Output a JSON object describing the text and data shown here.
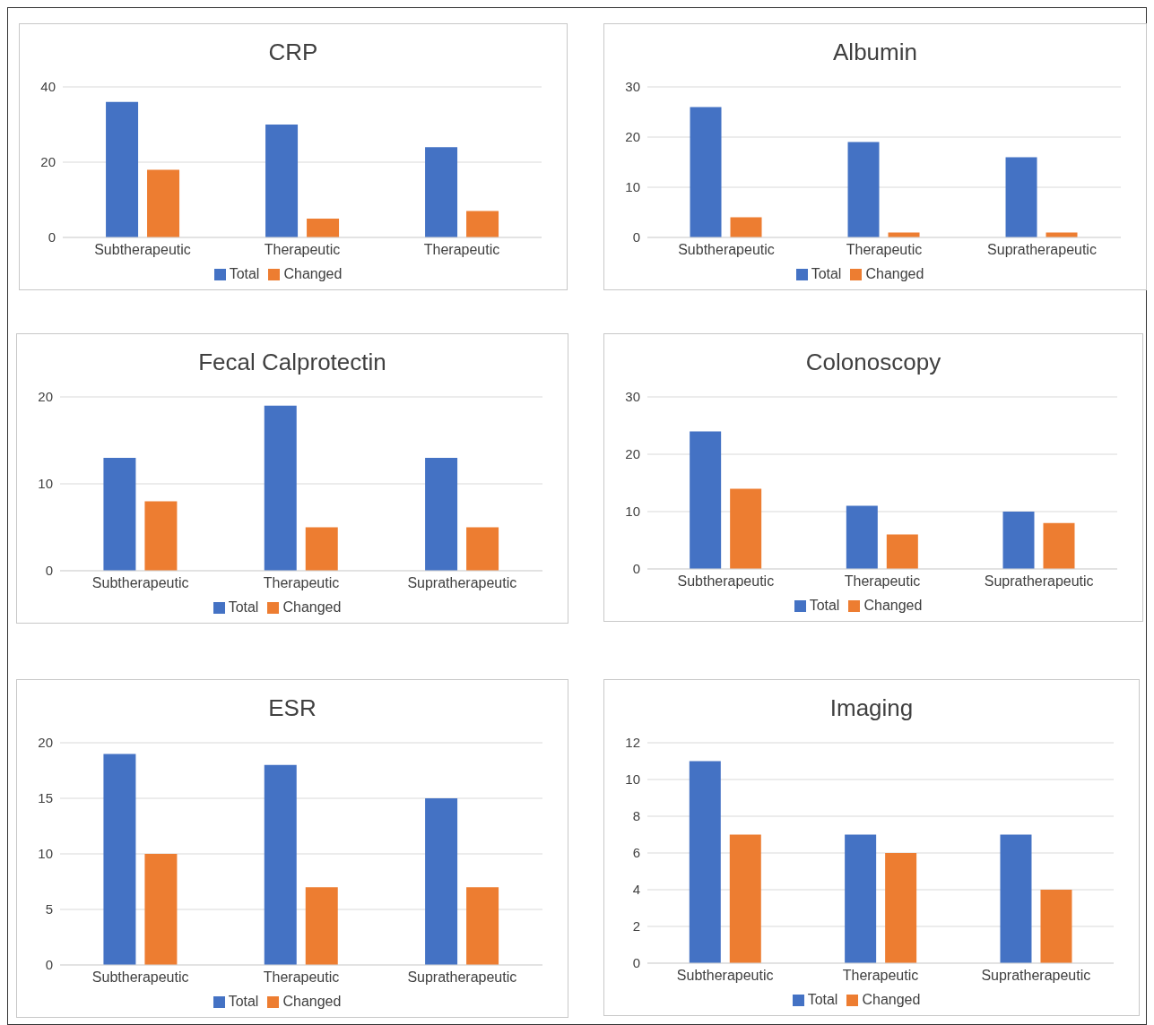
{
  "chart_data": [
    {
      "type": "bar",
      "title": "CRP",
      "categories": [
        "Subtherapeutic",
        "Therapeutic",
        "Therapeutic"
      ],
      "series": [
        {
          "name": "Total",
          "color": "#4472c4",
          "values": [
            36,
            30,
            24
          ]
        },
        {
          "name": "Changed",
          "color": "#ed7d31",
          "values": [
            18,
            5,
            7
          ]
        }
      ],
      "ylim": [
        0,
        40
      ],
      "yticks": [
        0,
        20,
        40
      ],
      "grid": "y",
      "legend": "bottom"
    },
    {
      "type": "bar",
      "title": "Albumin",
      "categories": [
        "Subtherapeutic",
        "Therapeutic",
        "Supratherapeutic"
      ],
      "series": [
        {
          "name": "Total",
          "color": "#4472c4",
          "values": [
            26,
            19,
            16
          ]
        },
        {
          "name": "Changed",
          "color": "#ed7d31",
          "values": [
            4,
            1,
            1
          ]
        }
      ],
      "ylim": [
        0,
        30
      ],
      "yticks": [
        0,
        10,
        20,
        30
      ],
      "grid": "y",
      "legend": "bottom"
    },
    {
      "type": "bar",
      "title": "Fecal Calprotectin",
      "categories": [
        "Subtherapeutic",
        "Therapeutic",
        "Supratherapeutic"
      ],
      "series": [
        {
          "name": "Total",
          "color": "#4472c4",
          "values": [
            13,
            19,
            13
          ]
        },
        {
          "name": "Changed",
          "color": "#ed7d31",
          "values": [
            8,
            5,
            5
          ]
        }
      ],
      "ylim": [
        0,
        20
      ],
      "yticks": [
        0,
        10,
        20
      ],
      "grid": "y",
      "legend": "bottom"
    },
    {
      "type": "bar",
      "title": "Colonoscopy",
      "categories": [
        "Subtherapeutic",
        "Therapeutic",
        "Supratherapeutic"
      ],
      "series": [
        {
          "name": "Total",
          "color": "#4472c4",
          "values": [
            24,
            11,
            10
          ]
        },
        {
          "name": "Changed",
          "color": "#ed7d31",
          "values": [
            14,
            6,
            8
          ]
        }
      ],
      "ylim": [
        0,
        30
      ],
      "yticks": [
        0,
        10,
        20,
        30
      ],
      "grid": "y",
      "legend": "bottom"
    },
    {
      "type": "bar",
      "title": "ESR",
      "categories": [
        "Subtherapeutic",
        "Therapeutic",
        "Supratherapeutic"
      ],
      "series": [
        {
          "name": "Total",
          "color": "#4472c4",
          "values": [
            19,
            18,
            15
          ]
        },
        {
          "name": "Changed",
          "color": "#ed7d31",
          "values": [
            10,
            7,
            7
          ]
        }
      ],
      "ylim": [
        0,
        20
      ],
      "yticks": [
        0,
        5,
        10,
        15,
        20
      ],
      "grid": "y",
      "legend": "bottom"
    },
    {
      "type": "bar",
      "title": "Imaging",
      "categories": [
        "Subtherapeutic",
        "Therapeutic",
        "Supratherapeutic"
      ],
      "series": [
        {
          "name": "Total",
          "color": "#4472c4",
          "values": [
            11,
            7,
            7
          ]
        },
        {
          "name": "Changed",
          "color": "#ed7d31",
          "values": [
            7,
            6,
            4
          ]
        }
      ],
      "ylim": [
        0,
        12
      ],
      "yticks": [
        0,
        2,
        4,
        6,
        8,
        10,
        12
      ],
      "grid": "y",
      "legend": "bottom"
    }
  ]
}
